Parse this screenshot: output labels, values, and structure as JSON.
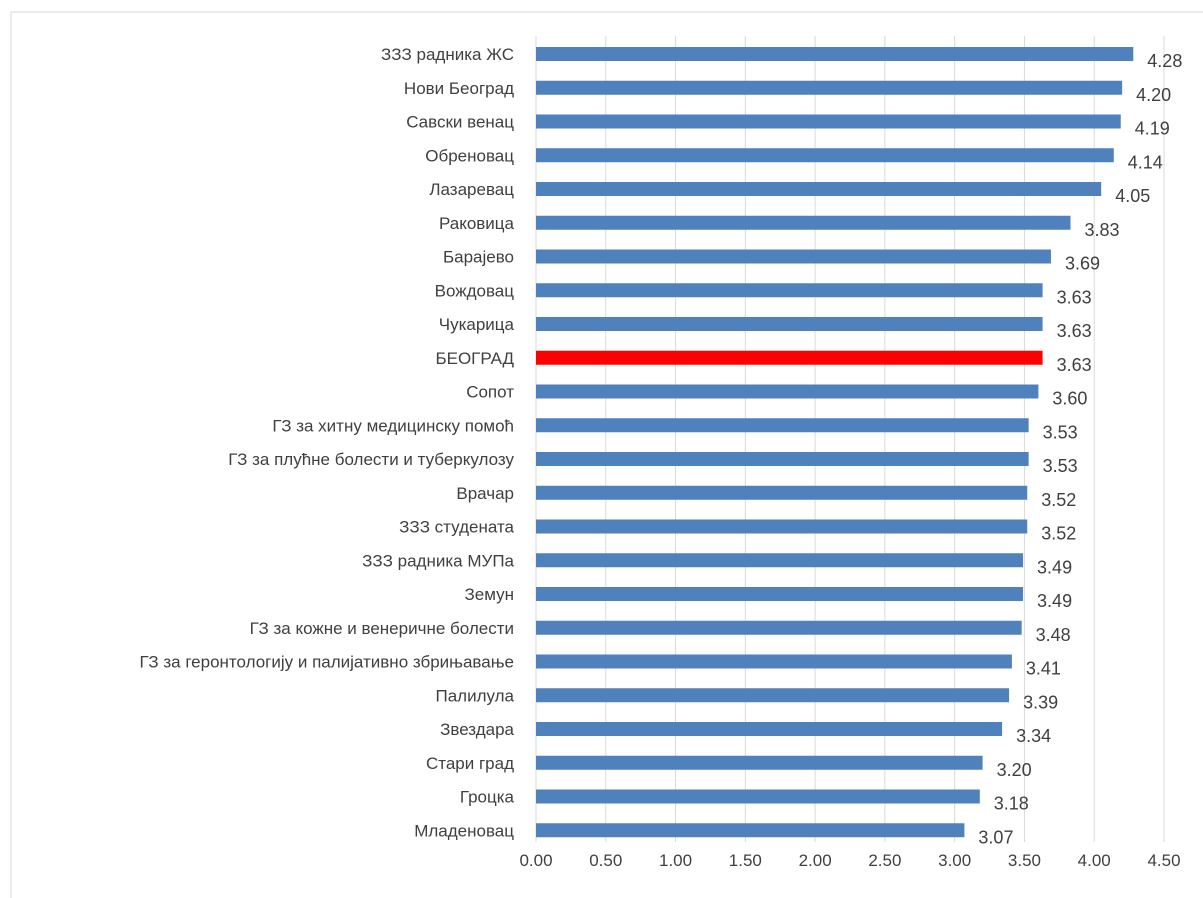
{
  "chart_data": {
    "type": "bar",
    "orientation": "horizontal",
    "title": "",
    "xlabel": "",
    "ylabel": "",
    "xlim": [
      0,
      4.5
    ],
    "xticks": [
      "0.00",
      "0.50",
      "1.00",
      "1.50",
      "2.00",
      "2.50",
      "3.00",
      "3.50",
      "4.00",
      "4.50"
    ],
    "grid": "vertical",
    "legend": "none",
    "bar_color": "#4f81bd",
    "highlight_color": "#ff0000",
    "highlight_category": "БЕОГРАД",
    "categories": [
      "ЗЗЗ радника ЖС",
      "Нови Београд",
      "Савски венац",
      "Обреновац",
      "Лазаревац",
      "Раковица",
      "Барајево",
      "Вождовац",
      "Чукарица",
      "БЕОГРАД",
      "Сопот",
      "ГЗ за хитну медицинску помоћ",
      "ГЗ за плућне болести и туберкулозу",
      "Врачар",
      "ЗЗЗ студената",
      "ЗЗЗ радника МУПа",
      "Земун",
      "ГЗ за кожне и венеричне болести",
      "ГЗ за геронтологију и палијативно збрињавање",
      "Палилула",
      "Звездара",
      "Стари град",
      "Гроцка",
      "Младеновац"
    ],
    "values": [
      4.28,
      4.2,
      4.19,
      4.14,
      4.05,
      3.83,
      3.69,
      3.63,
      3.63,
      3.63,
      3.6,
      3.53,
      3.53,
      3.52,
      3.52,
      3.49,
      3.49,
      3.48,
      3.41,
      3.39,
      3.34,
      3.2,
      3.18,
      3.07
    ],
    "value_labels": [
      "4.28",
      "4.20",
      "4.19",
      "4.14",
      "4.05",
      "3.83",
      "3.69",
      "3.63",
      "3.63",
      "3.63",
      "3.60",
      "3.53",
      "3.53",
      "3.52",
      "3.52",
      "3.49",
      "3.49",
      "3.48",
      "3.41",
      "3.39",
      "3.34",
      "3.20",
      "3.18",
      "3.07"
    ]
  }
}
